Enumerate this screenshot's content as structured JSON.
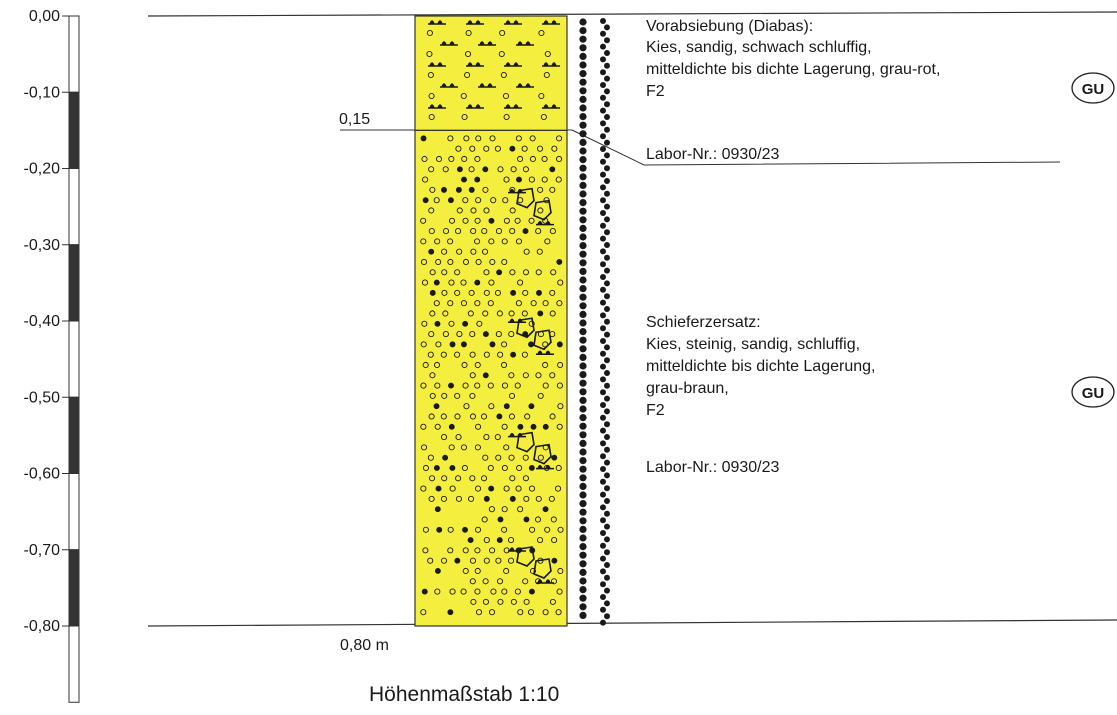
{
  "depth_scale": {
    "ticks": [
      "0,00",
      "-0,10",
      "-0,20",
      "-0,30",
      "-0,40",
      "-0,50",
      "-0,60",
      "-0,70",
      "-0,80"
    ],
    "tick_values": [
      0.0,
      0.1,
      0.2,
      0.3,
      0.4,
      0.5,
      0.6,
      0.7,
      0.8
    ],
    "max_depth": 0.9
  },
  "layers": [
    {
      "top": 0.0,
      "bottom": 0.15,
      "boundary_label": "0,15",
      "fill_color": "#f4ef3e",
      "description": [
        "Vorabsiebung (Diabas):",
        "Kies, sandig, schwach schluffig,",
        "mitteldichte bis dichte Lagerung, grau-rot,",
        "F2",
        "",
        "Labor-Nr.: 0930/23"
      ],
      "soil_group": "GU"
    },
    {
      "top": 0.15,
      "bottom": 0.8,
      "boundary_label": "0,80 m",
      "fill_color": "#f4ef3e",
      "description": [
        "Schieferzersatz:",
        "Kies, steinig, sandig, schluffig,",
        "mitteldichte bis dichte Lagerung,",
        "grau-braun,",
        "F2",
        "",
        "Labor-Nr.: 0930/23"
      ],
      "soil_group": "GU"
    }
  ],
  "footer": {
    "scale_label": "Höhenmaßstab 1:10"
  }
}
